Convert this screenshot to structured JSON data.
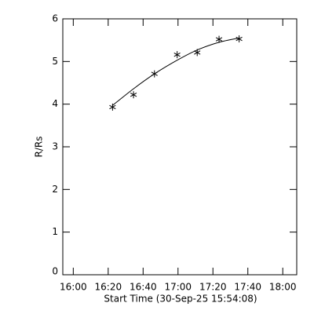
{
  "chart_data": {
    "type": "scatter",
    "x_label": "Start Time (30-Sep-25 15:54:08)",
    "y_label": "R/Rs",
    "xlim": [
      954,
      1088
    ],
    "xticks": [
      {
        "value": 960,
        "label": "16:00"
      },
      {
        "value": 980,
        "label": "16:20"
      },
      {
        "value": 1000,
        "label": "16:40"
      },
      {
        "value": 1020,
        "label": "17:00"
      },
      {
        "value": 1040,
        "label": "17:20"
      },
      {
        "value": 1060,
        "label": "17:40"
      },
      {
        "value": 1080,
        "label": "18:00"
      }
    ],
    "ylim": [
      0,
      6
    ],
    "yticks": [
      0,
      1,
      2,
      3,
      4,
      5,
      6
    ],
    "series": [
      {
        "style": "asterisk",
        "color": "#000000",
        "x": [
          982.5,
          994.5,
          1006.5,
          1019.5,
          1031,
          1043.5,
          1055
        ],
        "values": [
          3.93,
          4.22,
          4.71,
          5.16,
          5.21,
          5.52,
          5.53
        ]
      },
      {
        "style": "line",
        "color": "#000000",
        "x": [
          982.5,
          994.5,
          1006.5,
          1019.5,
          1031,
          1043.5,
          1055
        ],
        "values": [
          3.97,
          4.36,
          4.71,
          5.03,
          5.27,
          5.45,
          5.55
        ]
      }
    ]
  }
}
